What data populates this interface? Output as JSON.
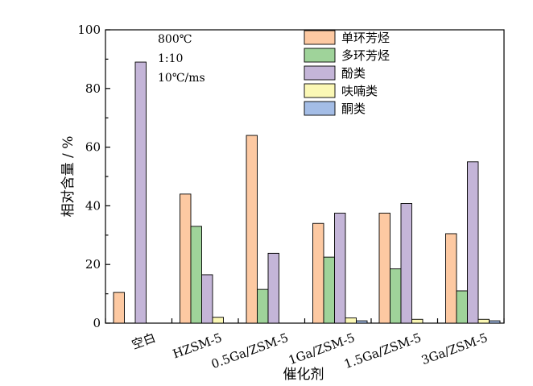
{
  "chart_data": {
    "type": "bar",
    "xlabel": "催化剂",
    "ylabel": "相对含量 / %",
    "ylim": [
      0,
      100
    ],
    "yticks": [
      0,
      20,
      40,
      60,
      80,
      100
    ],
    "grid": false,
    "legend_position": "top-center",
    "conditions": [
      "800℃",
      "1:10",
      "10℃/ms"
    ],
    "categories": [
      "空白",
      "HZSM-5",
      "0.5Ga/ZSM-5",
      "1Ga/ZSM-5",
      "1.5Ga/ZSM-5",
      "3Ga/ZSM-5"
    ],
    "series": [
      {
        "name": "单环芳烃",
        "color": "#fdc9a2",
        "values": [
          10.5,
          44,
          64,
          34,
          37.5,
          30.5
        ]
      },
      {
        "name": "多环芳烃",
        "color": "#9fd39a",
        "values": [
          0,
          33,
          11.5,
          22.5,
          18.5,
          11
        ]
      },
      {
        "name": "酚类",
        "color": "#c4b5d8",
        "values": [
          89,
          16.5,
          23.8,
          37.5,
          40.8,
          55
        ]
      },
      {
        "name": "呋喃类",
        "color": "#fbf8b5",
        "values": [
          0,
          2,
          0,
          1.8,
          1.3,
          1.3
        ]
      },
      {
        "name": "酮类",
        "color": "#a4bde6",
        "values": [
          0,
          0,
          0,
          0.8,
          0,
          0.8
        ]
      }
    ]
  }
}
